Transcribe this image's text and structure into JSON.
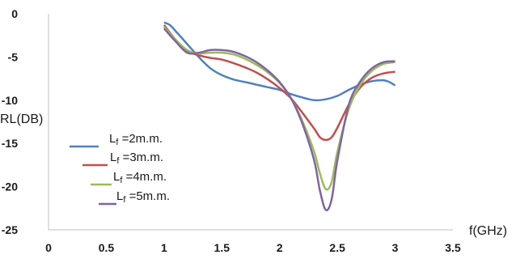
{
  "chart_data": {
    "type": "line",
    "xlabel": "f(GHz)",
    "ylabel": "RL(DB)",
    "xlim": [
      0,
      3.5
    ],
    "ylim": [
      -25,
      0
    ],
    "x_ticks": [
      "0",
      "0.5",
      "1",
      "1.5",
      "2",
      "2.5",
      "3",
      "3.5"
    ],
    "y_ticks": [
      "0",
      "-5",
      "-10",
      "-15",
      "-20",
      "-25"
    ],
    "grid": false,
    "legend_position": "left",
    "series": [
      {
        "name": "Lf =2m.m.",
        "legend_main": "L",
        "legend_sub": "f",
        "legend_rest": " =2m.m.",
        "color": "#4F81BD",
        "points": [
          [
            1.0,
            -1.0
          ],
          [
            1.05,
            -1.3
          ],
          [
            1.1,
            -2.0
          ],
          [
            1.2,
            -3.5
          ],
          [
            1.3,
            -5.0
          ],
          [
            1.4,
            -6.3
          ],
          [
            1.5,
            -7.1
          ],
          [
            1.6,
            -7.6
          ],
          [
            1.7,
            -7.9
          ],
          [
            1.8,
            -8.2
          ],
          [
            1.9,
            -8.5
          ],
          [
            2.0,
            -8.8
          ],
          [
            2.1,
            -9.3
          ],
          [
            2.2,
            -9.7
          ],
          [
            2.3,
            -10.0
          ],
          [
            2.4,
            -9.9
          ],
          [
            2.5,
            -9.5
          ],
          [
            2.6,
            -8.8
          ],
          [
            2.7,
            -8.2
          ],
          [
            2.8,
            -7.8
          ],
          [
            2.9,
            -7.7
          ],
          [
            2.95,
            -7.9
          ],
          [
            3.0,
            -8.3
          ]
        ]
      },
      {
        "name": "Lf =3m.m.",
        "legend_main": "L",
        "legend_sub": "f",
        "legend_rest": " =3m.m.",
        "color": "#C0504D",
        "points": [
          [
            1.0,
            -1.3
          ],
          [
            1.1,
            -3.0
          ],
          [
            1.2,
            -4.3
          ],
          [
            1.3,
            -4.8
          ],
          [
            1.4,
            -5.1
          ],
          [
            1.5,
            -5.3
          ],
          [
            1.6,
            -5.7
          ],
          [
            1.7,
            -6.2
          ],
          [
            1.8,
            -6.8
          ],
          [
            1.9,
            -7.6
          ],
          [
            2.0,
            -8.6
          ],
          [
            2.1,
            -9.8
          ],
          [
            2.2,
            -11.5
          ],
          [
            2.3,
            -13.3
          ],
          [
            2.35,
            -14.3
          ],
          [
            2.4,
            -14.6
          ],
          [
            2.45,
            -14.3
          ],
          [
            2.5,
            -13.2
          ],
          [
            2.6,
            -10.5
          ],
          [
            2.7,
            -8.5
          ],
          [
            2.8,
            -7.4
          ],
          [
            2.9,
            -6.9
          ],
          [
            3.0,
            -6.7
          ]
        ]
      },
      {
        "name": "Lf =4m.m.",
        "legend_main": "L",
        "legend_sub": "f",
        "legend_rest": " =4m.m.",
        "color": "#9BBB59",
        "points": [
          [
            1.0,
            -1.5
          ],
          [
            1.1,
            -3.0
          ],
          [
            1.2,
            -4.2
          ],
          [
            1.3,
            -4.6
          ],
          [
            1.4,
            -4.5
          ],
          [
            1.5,
            -4.5
          ],
          [
            1.6,
            -4.7
          ],
          [
            1.7,
            -5.2
          ],
          [
            1.8,
            -5.9
          ],
          [
            1.9,
            -6.8
          ],
          [
            2.0,
            -8.0
          ],
          [
            2.1,
            -9.8
          ],
          [
            2.2,
            -12.5
          ],
          [
            2.3,
            -16.0
          ],
          [
            2.35,
            -18.5
          ],
          [
            2.4,
            -20.3
          ],
          [
            2.45,
            -19.5
          ],
          [
            2.5,
            -16.0
          ],
          [
            2.6,
            -11.0
          ],
          [
            2.7,
            -8.2
          ],
          [
            2.8,
            -6.6
          ],
          [
            2.9,
            -5.8
          ],
          [
            3.0,
            -5.6
          ]
        ]
      },
      {
        "name": "Lf =5m.m.",
        "legend_main": "L",
        "legend_sub": "f",
        "legend_rest": " =5m.m.",
        "color": "#8064A2",
        "points": [
          [
            1.0,
            -1.7
          ],
          [
            1.1,
            -3.2
          ],
          [
            1.2,
            -4.5
          ],
          [
            1.3,
            -4.5
          ],
          [
            1.4,
            -4.2
          ],
          [
            1.5,
            -4.2
          ],
          [
            1.6,
            -4.4
          ],
          [
            1.7,
            -4.9
          ],
          [
            1.8,
            -5.6
          ],
          [
            1.9,
            -6.6
          ],
          [
            2.0,
            -7.9
          ],
          [
            2.1,
            -9.8
          ],
          [
            2.2,
            -12.8
          ],
          [
            2.3,
            -17.0
          ],
          [
            2.35,
            -20.5
          ],
          [
            2.4,
            -22.7
          ],
          [
            2.45,
            -21.5
          ],
          [
            2.5,
            -17.0
          ],
          [
            2.6,
            -10.5
          ],
          [
            2.7,
            -7.8
          ],
          [
            2.8,
            -6.3
          ],
          [
            2.9,
            -5.6
          ],
          [
            3.0,
            -5.5
          ]
        ]
      }
    ]
  }
}
